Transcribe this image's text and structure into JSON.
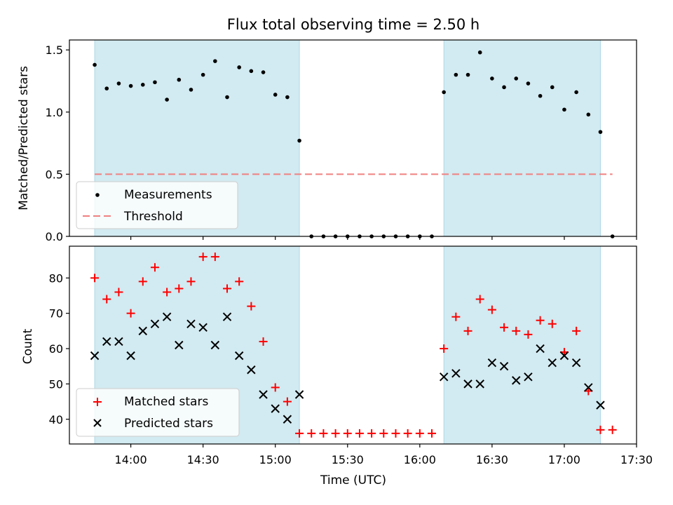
{
  "chart_data": [
    {
      "type": "scatter",
      "title": "Flux total observing time = 2.50 h",
      "xlabel": "",
      "ylabel": "Matched/Predicted stars",
      "xlim": [
        "13:45",
        "17:30"
      ],
      "ylim": [
        0,
        1.58
      ],
      "yticks": [
        0.0,
        0.5,
        1.0,
        1.5
      ],
      "ytick_labels": [
        "0.0",
        "0.5",
        "1.0",
        "1.5"
      ],
      "shaded_intervals": [
        [
          "13:45",
          "15:10"
        ],
        [
          "16:10",
          "17:15"
        ]
      ],
      "shade_color": "#add8e6",
      "threshold": {
        "name": "Threshold",
        "value": 0.5,
        "x_range": [
          "13:45",
          "17:20"
        ],
        "color": "#f08080"
      },
      "series": [
        {
          "name": "Measurements",
          "color": "#000000",
          "x": [
            "13:45",
            "13:50",
            "13:55",
            "14:00",
            "14:05",
            "14:10",
            "14:15",
            "14:20",
            "14:25",
            "14:30",
            "14:35",
            "14:40",
            "14:45",
            "14:50",
            "14:55",
            "15:00",
            "15:05",
            "15:10",
            "15:15",
            "15:20",
            "15:25",
            "15:30",
            "15:35",
            "15:40",
            "15:45",
            "15:50",
            "15:55",
            "16:00",
            "16:05",
            "16:10",
            "16:15",
            "16:20",
            "16:25",
            "16:30",
            "16:35",
            "16:40",
            "16:45",
            "16:50",
            "16:55",
            "17:00",
            "17:05",
            "17:10",
            "17:15",
            "17:20"
          ],
          "y": [
            1.38,
            1.19,
            1.23,
            1.21,
            1.22,
            1.24,
            1.1,
            1.26,
            1.18,
            1.3,
            1.41,
            1.12,
            1.36,
            1.33,
            1.32,
            1.14,
            1.12,
            0.77,
            0,
            0,
            0,
            0,
            0,
            0,
            0,
            0,
            0,
            0,
            0,
            1.16,
            1.3,
            1.3,
            1.48,
            1.27,
            1.2,
            1.27,
            1.23,
            1.13,
            1.2,
            1.02,
            1.16,
            0.98,
            0.84,
            0
          ]
        }
      ],
      "legend": {
        "position": "lower-left",
        "entries": [
          "Measurements",
          "Threshold"
        ]
      }
    },
    {
      "type": "scatter",
      "title": "",
      "xlabel": "Time (UTC)",
      "ylabel": "Count",
      "xlim": [
        "13:45",
        "17:30"
      ],
      "ylim": [
        33,
        89
      ],
      "yticks": [
        40,
        50,
        60,
        70,
        80
      ],
      "ytick_labels": [
        "40",
        "50",
        "60",
        "70",
        "80"
      ],
      "xticks": [
        "14:00",
        "14:30",
        "15:00",
        "15:30",
        "16:00",
        "16:30",
        "17:00",
        "17:30"
      ],
      "xtick_labels": [
        "14:00",
        "14:30",
        "15:00",
        "15:30",
        "16:00",
        "16:30",
        "17:00",
        "17:30"
      ],
      "shaded_intervals": [
        [
          "13:45",
          "15:10"
        ],
        [
          "16:10",
          "17:15"
        ]
      ],
      "shade_color": "#add8e6",
      "series": [
        {
          "name": "Matched stars",
          "marker": "plus",
          "color": "#ff0000",
          "x": [
            "13:45",
            "13:50",
            "13:55",
            "14:00",
            "14:05",
            "14:10",
            "14:15",
            "14:20",
            "14:25",
            "14:30",
            "14:35",
            "14:40",
            "14:45",
            "14:50",
            "14:55",
            "15:00",
            "15:05",
            "15:10",
            "15:15",
            "15:20",
            "15:25",
            "15:30",
            "15:35",
            "15:40",
            "15:45",
            "15:50",
            "15:55",
            "16:00",
            "16:05",
            "16:10",
            "16:15",
            "16:20",
            "16:25",
            "16:30",
            "16:35",
            "16:40",
            "16:45",
            "16:50",
            "16:55",
            "17:00",
            "17:05",
            "17:10",
            "17:15",
            "17:20"
          ],
          "y": [
            80,
            74,
            76,
            70,
            79,
            83,
            76,
            77,
            79,
            86,
            86,
            77,
            79,
            72,
            62,
            49,
            45,
            36,
            36,
            36,
            36,
            36,
            36,
            36,
            36,
            36,
            36,
            36,
            36,
            60,
            69,
            65,
            74,
            71,
            66,
            65,
            64,
            68,
            67,
            59,
            65,
            48,
            37,
            37
          ]
        },
        {
          "name": "Predicted stars",
          "marker": "x",
          "color": "#000000",
          "x": [
            "13:45",
            "13:50",
            "13:55",
            "14:00",
            "14:05",
            "14:10",
            "14:15",
            "14:20",
            "14:25",
            "14:30",
            "14:35",
            "14:40",
            "14:45",
            "14:50",
            "14:55",
            "15:00",
            "15:05",
            "15:10",
            "16:10",
            "16:15",
            "16:20",
            "16:25",
            "16:30",
            "16:35",
            "16:40",
            "16:45",
            "16:50",
            "16:55",
            "17:00",
            "17:05",
            "17:10",
            "17:15"
          ],
          "y": [
            58,
            62,
            62,
            58,
            65,
            67,
            69,
            61,
            67,
            66,
            61,
            69,
            58,
            54,
            47,
            43,
            40,
            47,
            52,
            53,
            50,
            50,
            56,
            55,
            51,
            52,
            60,
            56,
            58,
            56,
            49,
            44
          ]
        }
      ],
      "legend": {
        "position": "lower-left",
        "entries": [
          "Matched stars",
          "Predicted stars"
        ]
      }
    }
  ]
}
